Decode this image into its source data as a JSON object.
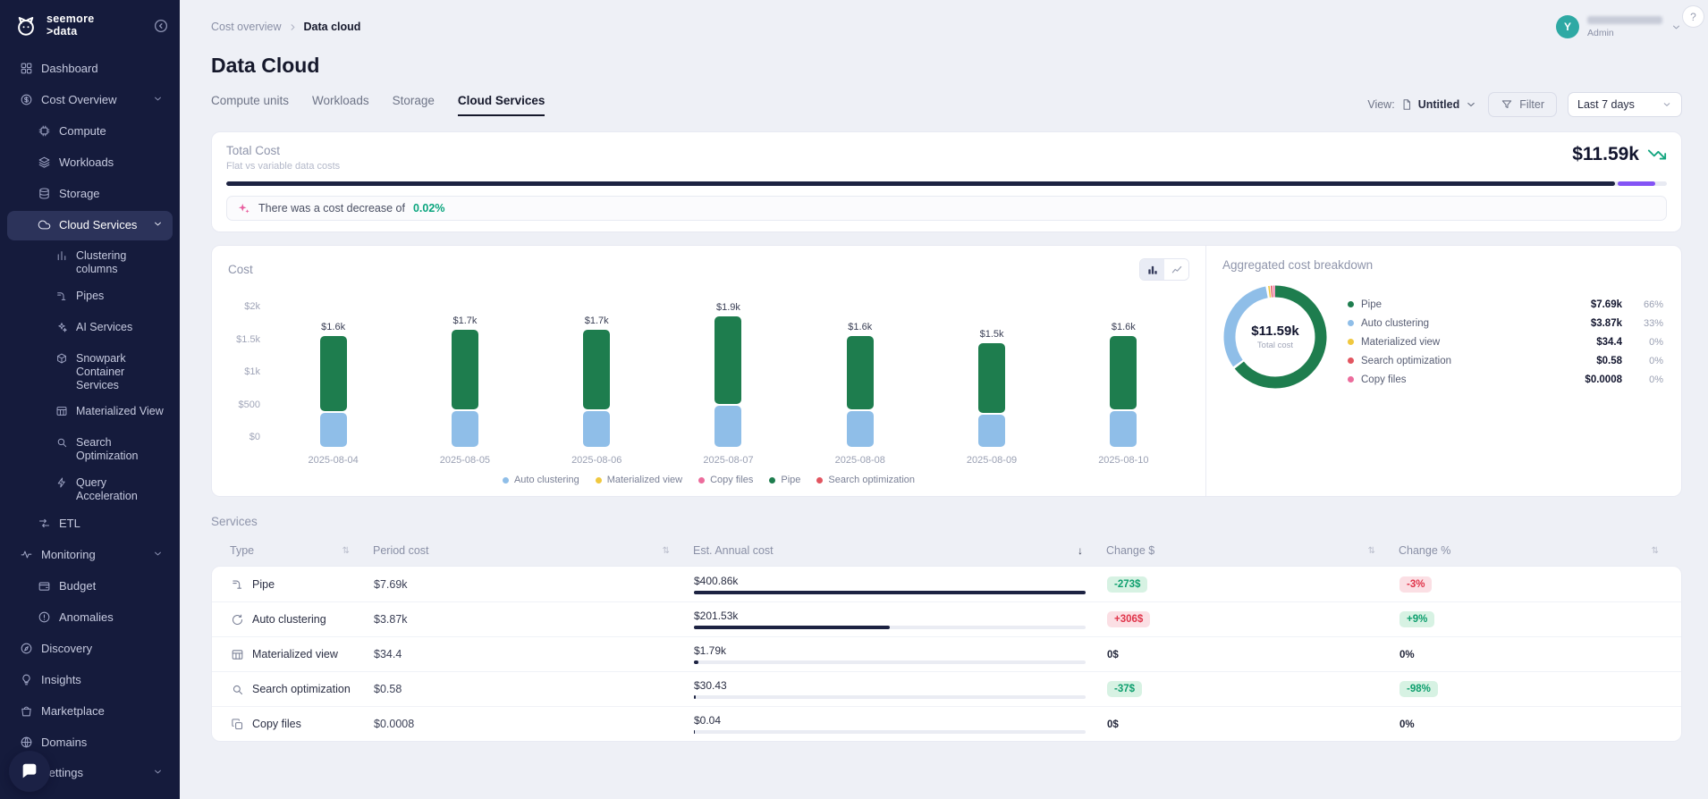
{
  "colors": {
    "sidebar_bg": "#151B3C",
    "primary_navy": "#1D2342",
    "accent_purple": "#8454F5",
    "positive_green": "#0E9F6E",
    "negative_red": "#E0344A",
    "highlight_teal": "#0BA57E"
  },
  "sidebar": {
    "logo_line1": "seemore",
    "logo_line2": ">data",
    "items": [
      {
        "label": "Dashboard",
        "slug": "dashboard",
        "icon": "dashboard",
        "level": 0
      },
      {
        "label": "Cost Overview",
        "slug": "cost-overview",
        "icon": "cost-overview",
        "level": 0,
        "chevron": true
      },
      {
        "label": "Compute",
        "slug": "compute",
        "icon": "compute",
        "level": 1
      },
      {
        "label": "Workloads",
        "slug": "workloads",
        "icon": "workloads",
        "level": 1
      },
      {
        "label": "Storage",
        "slug": "storage",
        "icon": "storage",
        "level": 1
      },
      {
        "label": "Cloud Services",
        "slug": "cloud-services",
        "icon": "cloud",
        "level": 1,
        "active": true,
        "chevron": true
      },
      {
        "label": "Clustering columns",
        "slug": "clustering-columns",
        "icon": "columns",
        "level": 2
      },
      {
        "label": "Pipes",
        "slug": "pipes",
        "icon": "pipe",
        "level": 2
      },
      {
        "label": "AI Services",
        "slug": "ai-services",
        "icon": "ai",
        "level": 2
      },
      {
        "label": "Snowpark Container Services",
        "slug": "snowpark-container-services",
        "icon": "container",
        "level": 2
      },
      {
        "label": "Materialized View",
        "slug": "materialized-view",
        "icon": "table",
        "level": 2
      },
      {
        "label": "Search Optimization",
        "slug": "search-optimization",
        "icon": "search",
        "level": 2
      },
      {
        "label": "Query Acceleration",
        "slug": "query-acceleration",
        "icon": "bolt",
        "level": 2
      },
      {
        "label": "ETL",
        "slug": "etl",
        "icon": "etl",
        "level": 1
      },
      {
        "label": "Monitoring",
        "slug": "monitoring",
        "icon": "monitoring",
        "level": 0,
        "chevron": true
      },
      {
        "label": "Budget",
        "slug": "budget",
        "icon": "budget",
        "level": 1
      },
      {
        "label": "Anomalies",
        "slug": "anomalies",
        "icon": "anomalies",
        "level": 1
      },
      {
        "label": "Discovery",
        "slug": "discovery",
        "icon": "discovery",
        "level": 0
      },
      {
        "label": "Insights",
        "slug": "insights",
        "icon": "insights",
        "level": 0
      },
      {
        "label": "Marketplace",
        "slug": "marketplace",
        "icon": "marketplace",
        "level": 0
      },
      {
        "label": "Domains",
        "slug": "domains",
        "icon": "domains",
        "level": 0
      },
      {
        "label": "Settings",
        "slug": "settings",
        "icon": "settings",
        "level": 0,
        "chevron": true,
        "pin": "bottom"
      }
    ]
  },
  "topbar": {
    "breadcrumb": [
      "Cost overview",
      "Data cloud"
    ],
    "user": {
      "initial": "Y",
      "role": "Admin"
    }
  },
  "page": {
    "title": "Data Cloud",
    "tabs": [
      "Compute units",
      "Workloads",
      "Storage",
      "Cloud Services"
    ],
    "active_tab": "Cloud Services",
    "controls": {
      "view_label": "View:",
      "view_value": "Untitled",
      "filter_label": "Filter",
      "range_value": "Last 7 days"
    }
  },
  "total_cost": {
    "title": "Total Cost",
    "subtitle": "Flat vs variable data costs",
    "value": "$11.59k",
    "bar": {
      "primary_pct": 96.4,
      "secondary_pct": 2.6,
      "primary_color": "#1D2342",
      "secondary_color": "#8454F5"
    },
    "insight_prefix": "There was a cost decrease of",
    "insight_value": "0.02%"
  },
  "cost_chart": {
    "title": "Cost",
    "legend": [
      {
        "label": "Auto clustering",
        "color": "#8FBEE8"
      },
      {
        "label": "Materialized view",
        "color": "#F0C83F"
      },
      {
        "label": "Copy files",
        "color": "#EC6C9C"
      },
      {
        "label": "Pipe",
        "color": "#1E7D4E"
      },
      {
        "label": "Search optimization",
        "color": "#E25560"
      }
    ]
  },
  "breakdown_title": "Aggregated cost breakdown",
  "services": {
    "title": "Services",
    "columns": [
      "Type",
      "Period cost",
      "Est. Annual cost",
      "Change $",
      "Change %"
    ],
    "rows": [
      {
        "type": "Pipe",
        "period": "$7.69k",
        "annual": "$400.86k",
        "annual_pct": 100,
        "change_d": {
          "text": "-273$",
          "kind": "green"
        },
        "change_p": {
          "text": "-3%",
          "kind": "pink"
        }
      },
      {
        "type": "Auto clustering",
        "period": "$3.87k",
        "annual": "$201.53k",
        "annual_pct": 50,
        "change_d": {
          "text": "+306$",
          "kind": "pink"
        },
        "change_p": {
          "text": "+9%",
          "kind": "green"
        }
      },
      {
        "type": "Materialized view",
        "period": "$34.4",
        "annual": "$1.79k",
        "annual_pct": 1.2,
        "change_d": {
          "text": "0$",
          "kind": "plain"
        },
        "change_p": {
          "text": "0%",
          "kind": "plain"
        }
      },
      {
        "type": "Search optimization",
        "period": "$0.58",
        "annual": "$30.43",
        "annual_pct": 0.5,
        "change_d": {
          "text": "-37$",
          "kind": "green"
        },
        "change_p": {
          "text": "-98%",
          "kind": "green"
        }
      },
      {
        "type": "Copy files",
        "period": "$0.0008",
        "annual": "$0.04",
        "annual_pct": 0.3,
        "change_d": {
          "text": "0$",
          "kind": "plain"
        },
        "change_p": {
          "text": "0%",
          "kind": "plain"
        }
      }
    ]
  },
  "chart_data": [
    {
      "type": "bar",
      "stacked": true,
      "title": "Cost",
      "categories": [
        "2025-08-04",
        "2025-08-05",
        "2025-08-06",
        "2025-08-07",
        "2025-08-08",
        "2025-08-09",
        "2025-08-10"
      ],
      "series": [
        {
          "name": "Auto clustering",
          "color": "#8FBEE8",
          "values": [
            500,
            530,
            530,
            610,
            520,
            480,
            520
          ]
        },
        {
          "name": "Pipe",
          "color": "#1E7D4E",
          "values": [
            1100,
            1170,
            1170,
            1290,
            1080,
            1020,
            1080
          ]
        }
      ],
      "bar_totals": [
        "$1.6k",
        "$1.7k",
        "$1.7k",
        "$1.9k",
        "$1.6k",
        "$1.5k",
        "$1.6k"
      ],
      "ylim": [
        0,
        2000
      ],
      "yticks": [
        "$2k",
        "$1.5k",
        "$1k",
        "$500",
        "$0"
      ],
      "legend_position": "bottom",
      "grid": false
    },
    {
      "type": "donut",
      "title": "Aggregated cost breakdown",
      "center": {
        "value": "$11.59k",
        "label": "Total cost"
      },
      "slices": [
        {
          "name": "Pipe",
          "value": "$7.69k",
          "pct": 66,
          "pct_label": "66%",
          "color": "#1E7D4E"
        },
        {
          "name": "Auto clustering",
          "value": "$3.87k",
          "pct": 33,
          "pct_label": "33%",
          "color": "#8FBEE8"
        },
        {
          "name": "Materialized view",
          "value": "$34.4",
          "pct": 0,
          "pct_label": "0%",
          "color": "#F0C83F"
        },
        {
          "name": "Search optimization",
          "value": "$0.58",
          "pct": 0,
          "pct_label": "0%",
          "color": "#E25560"
        },
        {
          "name": "Copy files",
          "value": "$0.0008",
          "pct": 0,
          "pct_label": "0%",
          "color": "#EC6C9C"
        }
      ]
    }
  ]
}
